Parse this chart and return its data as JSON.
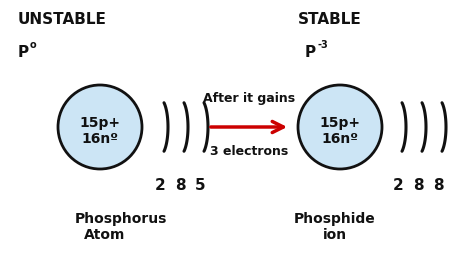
{
  "bg_color": "#ffffff",
  "unstable_label": "UNSTABLE",
  "stable_label": "STABLE",
  "left_symbol_main": "P",
  "left_symbol_sup": "o",
  "right_symbol_main": "P",
  "right_symbol_sup": "-3",
  "nucleus_text_left": "15p+\n16nº",
  "nucleus_text_right": "15p+\n16nº",
  "left_shell_numbers": [
    "2",
    "8",
    "5"
  ],
  "right_shell_numbers": [
    "2",
    "8",
    "8"
  ],
  "arrow_text_line1": "After it gains",
  "arrow_text_line2": "3 electrons",
  "left_label_line1": "Phosphorus",
  "left_label_line2": "Atom",
  "right_label_line1": "Phosphide",
  "right_label_line2": "ion",
  "nucleus_color": "#cce5f5",
  "nucleus_edge_color": "#111111",
  "arc_color": "#111111",
  "arrow_color": "#cc0000",
  "text_color": "#111111"
}
